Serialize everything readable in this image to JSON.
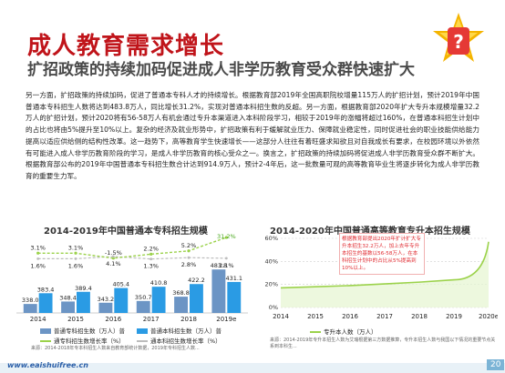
{
  "header": {
    "title": "成人教育需求增长",
    "subtitle": "扩招政策的持续加码促进成人非学历教育受众群快速扩大"
  },
  "body_text": "另一方面，扩招政策的持续加码，促进了普通本专科人才的持续增长。根据教育部2019年全国高职院校增量115万人的扩招计划，预计2019年中国普通本专科招生人数将达到483.8万人，同比增长31.2%，实现对普通本科招生数的反超。另一方面，根据教育部2020年扩大专升本规模增量32.2万人的扩招计划，预计2020将有56-58万人有机会通过专升本渠道进入本科阶段学习，相较于2019年的涨幅将超过160%，在普通本科招生计划中的占比也将由5%提升至10%以上。复杂的经济及就业形势中，扩招政策有利于缓解就业压力、保障就业稳定性，同时促进社会的职业技能供给能力提高以适应供给侧的结构性改革。这一趋势下，高等教育学生快速增长——这部分人往往有着旺盛求知欲且对自我成长有要求，在校园环境以外依然有可能进入成人非学历教育阶段的学习，是成人非学历教育的核心受众之一。换言之，扩招政策的持续加码将促进成人非学历教育受众群不断扩大。根据教育部公布的2019年中国普通本专科招生数合计达到914.9万人，预计2-4年后，这一批数量可观的高等教育毕业生将逐步转化为成人非学历教育的重要生力军。",
  "left_chart": {
    "title": "2014-2019年中国普通本专科招生规模",
    "legend": [
      "普通专科招生数（万人）普",
      "普通本科招生数（万人）普",
      "通专科招生数增长率（%）",
      "通本科招生数增长率（%）"
    ],
    "note": "来源：2014-2018年专本科招生人数来自教育部统计数据，2019年专科招生人数..."
  },
  "right_chart": {
    "title": "2014-2020年中国普通高等教育专升本招生规模",
    "legend": "专升本人数（万人）",
    "callout": "根据教育部提出2020年扩计扩大专升本招生32.2万人，加上去年专升本招生的基数以56-58万人，在本科招生计划中的占比从5%提高到10%以上。",
    "note": "来源：2014-2019年专升本招生人数为艾瑞根据第三方数据推算，专升本招生人数与我国以下情况的重要节点关系到本科生..."
  },
  "footer": {
    "site": "www.eaishuifree.cn",
    "page": "20"
  },
  "chart_data": [
    {
      "type": "bar",
      "title": "2014-2019年中国普通本专科招生规模",
      "categories": [
        "2014",
        "2015",
        "2016",
        "2017",
        "2018",
        "2019e"
      ],
      "series": [
        {
          "name": "普通专科招生数（万人）",
          "kind": "bar",
          "color": "#6c95c5",
          "values": [
            338.0,
            348.4,
            343.2,
            350.7,
            368.8,
            483.8
          ]
        },
        {
          "name": "普通本科招生数（万人）",
          "kind": "bar",
          "color": "#2a9be4",
          "values": [
            383.4,
            389.4,
            405.4,
            410.8,
            422.2,
            431.1
          ]
        },
        {
          "name": "专科招生数增长率（%）",
          "kind": "line",
          "color": "#9bd24a",
          "values": [
            3.1,
            3.1,
            -1.5,
            2.2,
            5.2,
            31.2
          ]
        },
        {
          "name": "本科招生数增长率（%）",
          "kind": "line",
          "color": "#bcbcbc",
          "values": [
            1.6,
            1.6,
            4.1,
            1.3,
            2.8,
            2.1
          ]
        }
      ],
      "bar_labels": [
        "338.0",
        "383.4",
        "348.4",
        "389.4",
        "343.2",
        "405.4",
        "350.7",
        "410.8",
        "368.8",
        "422.2",
        "483.8",
        "431.1"
      ],
      "top_labels": [
        "3.1%",
        "4.1%",
        "2.2%",
        "5.2%",
        "31.2%"
      ],
      "mid_labels": [
        "1.6%",
        "-1.5%",
        "1.3%",
        "2.8%",
        "2.1%"
      ]
    },
    {
      "type": "area",
      "title": "2014-2020年中国普通高等教育专升本招生规模",
      "categories": [
        "2014",
        "2015",
        "2016",
        "2017",
        "2018",
        "2019",
        "2020e"
      ],
      "series": [
        {
          "name": "专升本人数（万人）",
          "color": "#9bd24a",
          "values": [
            17,
            18,
            19,
            20.5,
            22,
            24,
            57
          ]
        }
      ],
      "yticks": [
        "60%",
        "40%",
        "20%",
        "0%"
      ],
      "grid": true
    }
  ]
}
